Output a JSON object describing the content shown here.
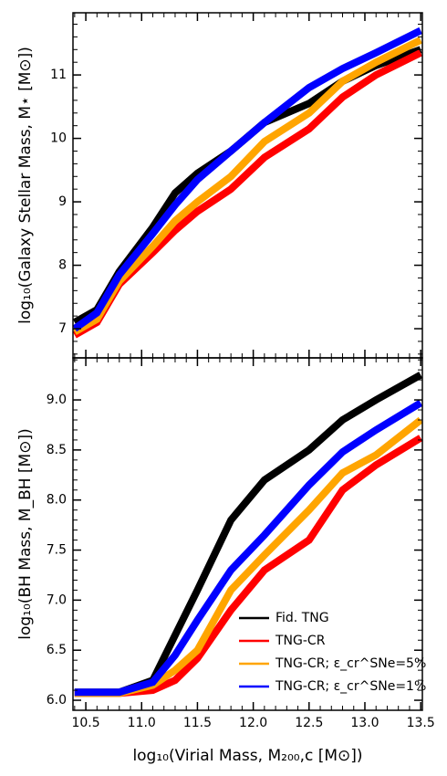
{
  "chart_data": [
    {
      "type": "line",
      "ylabel": "log₁₀(Galaxy Stellar Mass, M⋆ [M⊙])",
      "x": [
        10.4,
        10.6,
        10.8,
        11.1,
        11.3,
        11.5,
        11.8,
        12.1,
        12.5,
        12.8,
        13.1,
        13.5
      ],
      "series": [
        {
          "name": "Fid. TNG",
          "color": "#000000",
          "values": [
            7.1,
            7.3,
            7.9,
            8.6,
            9.14,
            9.45,
            9.8,
            10.25,
            10.55,
            10.9,
            11.15,
            11.4
          ]
        },
        {
          "name": "TNG-CR",
          "color": "#ff0000",
          "values": [
            6.9,
            7.1,
            7.7,
            8.2,
            8.55,
            8.85,
            9.2,
            9.7,
            10.15,
            10.65,
            11.0,
            11.35
          ]
        },
        {
          "name": "TNG-CR; ε_cr^SNe=5%",
          "color": "#ffa500",
          "values": [
            6.95,
            7.15,
            7.75,
            8.3,
            8.7,
            9.0,
            9.4,
            9.95,
            10.4,
            10.9,
            11.2,
            11.55
          ]
        },
        {
          "name": "TNG-CR; ε_cr^SNe=1%",
          "color": "#0000ff",
          "values": [
            7.0,
            7.25,
            7.85,
            8.5,
            8.95,
            9.35,
            9.8,
            10.25,
            10.8,
            11.1,
            11.35,
            11.7
          ]
        }
      ],
      "xlim": [
        10.385,
        13.515
      ],
      "xticks": [
        10.5,
        11,
        11.5,
        12,
        12.5,
        13,
        13.5
      ],
      "ylim": [
        6.54,
        11.98
      ],
      "yticks": [
        7,
        8,
        9,
        10,
        11
      ]
    },
    {
      "type": "line",
      "xlabel": "log₁₀(Virial Mass, M₂₀₀,c [M⊙])",
      "ylabel": "log₁₀(BH Mass, M_BH [M⊙])",
      "x": [
        10.4,
        10.6,
        10.8,
        11.1,
        11.3,
        11.5,
        11.8,
        12.1,
        12.5,
        12.8,
        13.1,
        13.5
      ],
      "series": [
        {
          "name": "Fid. TNG",
          "color": "#000000",
          "values": [
            6.08,
            6.08,
            6.08,
            6.2,
            6.65,
            7.1,
            7.8,
            8.2,
            8.5,
            8.8,
            9.0,
            9.25
          ]
        },
        {
          "name": "TNG-CR",
          "color": "#ff0000",
          "values": [
            6.07,
            6.07,
            6.07,
            6.1,
            6.2,
            6.42,
            6.9,
            7.3,
            7.6,
            8.1,
            8.35,
            8.62
          ]
        },
        {
          "name": "TNG-CR; ε_cr^SNe=5%",
          "color": "#ffa500",
          "values": [
            6.07,
            6.07,
            6.07,
            6.15,
            6.3,
            6.5,
            7.1,
            7.45,
            7.9,
            8.27,
            8.45,
            8.8
          ]
        },
        {
          "name": "TNG-CR; ε_cr^SNe=1%",
          "color": "#0000ff",
          "values": [
            6.08,
            6.08,
            6.08,
            6.18,
            6.45,
            6.8,
            7.3,
            7.65,
            8.15,
            8.48,
            8.7,
            8.97
          ]
        }
      ],
      "xlim": [
        10.385,
        13.515
      ],
      "xticks": [
        {
          "value": 10.5,
          "label": "10.5"
        },
        {
          "value": 11,
          "label": "11.0"
        },
        {
          "value": 11.5,
          "label": "11.5"
        },
        {
          "value": 12,
          "label": "12.0"
        },
        {
          "value": 12.5,
          "label": "12.5"
        },
        {
          "value": 13,
          "label": "13.0"
        },
        {
          "value": 13.5,
          "label": "13.5"
        }
      ],
      "ylim": [
        5.9,
        9.42
      ],
      "yticks": [
        {
          "value": 6,
          "label": "6.0"
        },
        {
          "value": 6.5,
          "label": "6.5"
        },
        {
          "value": 7,
          "label": "7.0"
        },
        {
          "value": 7.5,
          "label": "7.5"
        },
        {
          "value": 8,
          "label": "8.0"
        },
        {
          "value": 8.5,
          "label": "8.5"
        },
        {
          "value": 9,
          "label": "9.0"
        }
      ],
      "legend": "lower right"
    }
  ]
}
